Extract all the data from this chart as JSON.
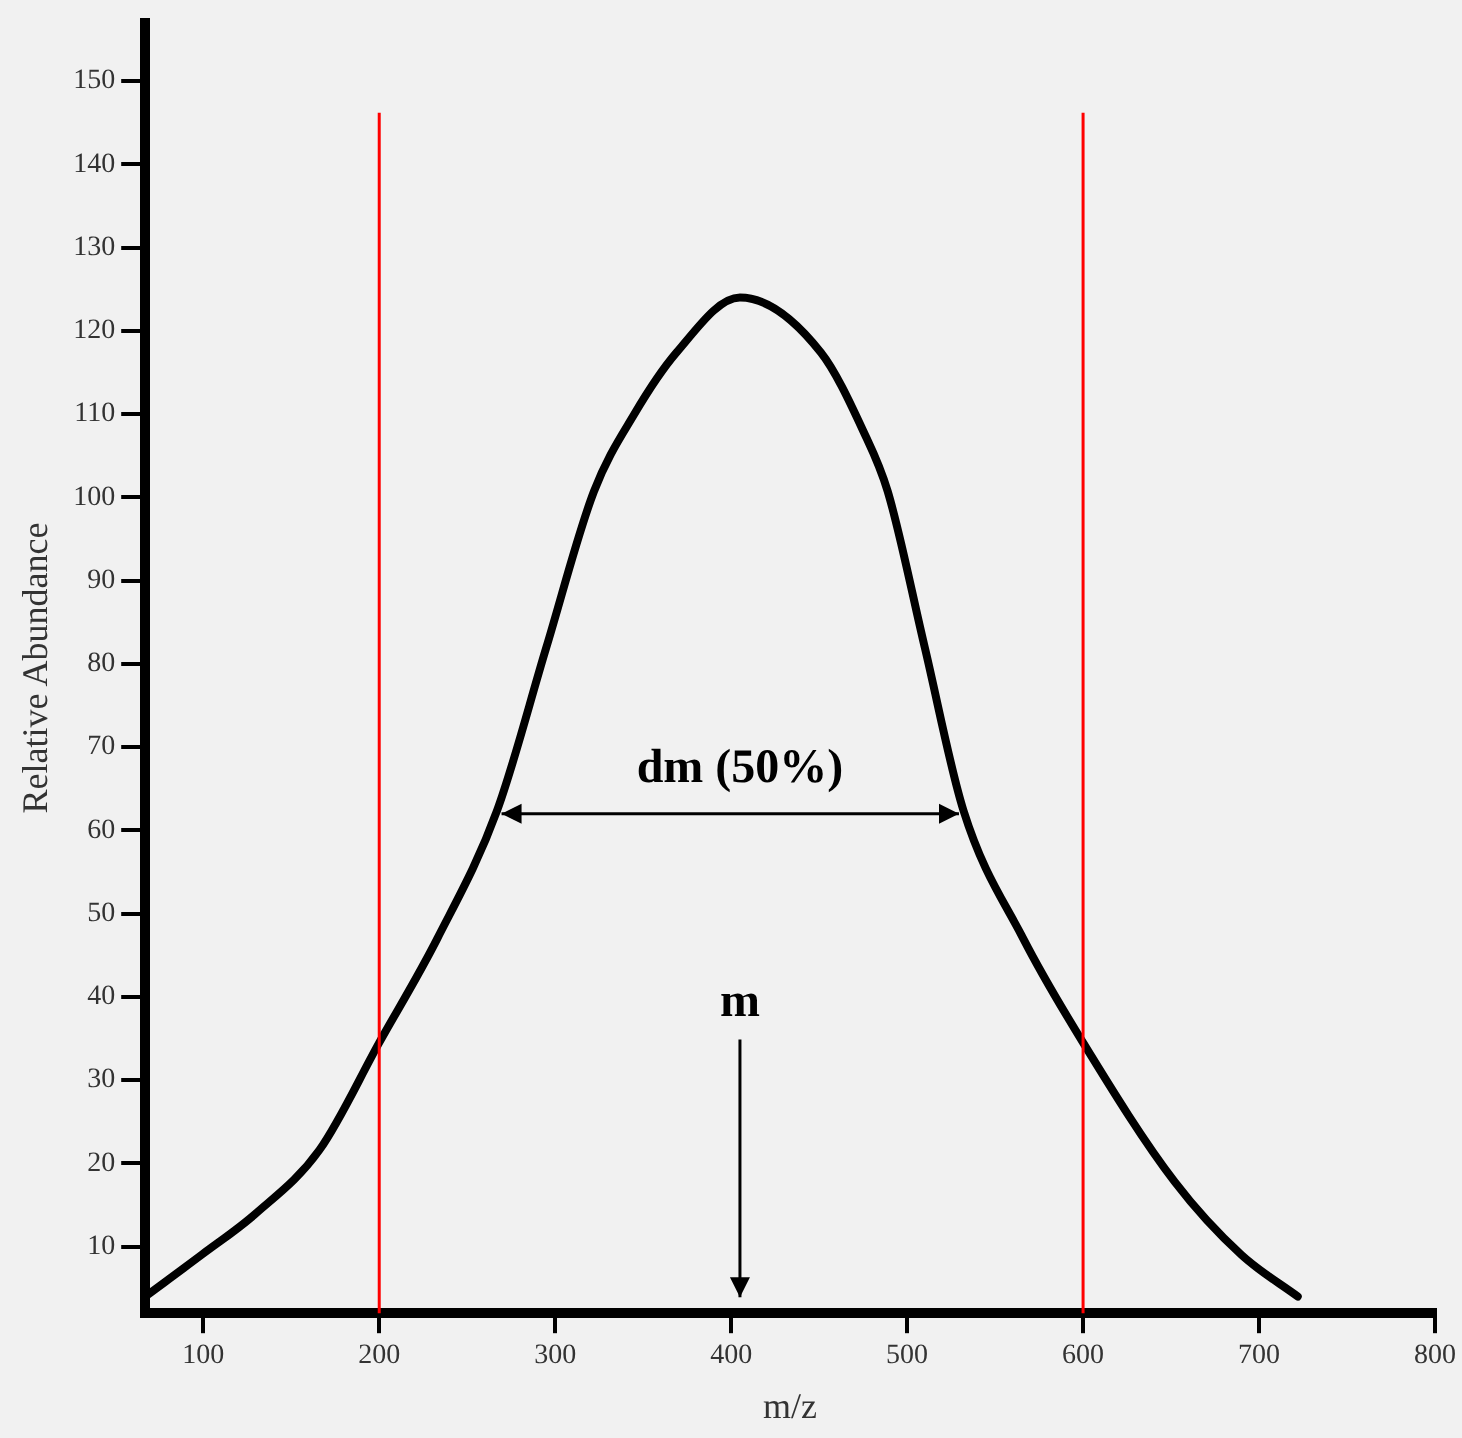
{
  "chart_data": {
    "type": "line",
    "xlabel": "m/z",
    "ylabel": "Relative Abundance",
    "x": [
      67,
      99,
      130,
      166,
      200,
      233,
      267,
      295,
      322,
      345,
      369,
      405,
      451,
      475,
      489,
      510,
      532,
      566,
      600,
      652,
      690,
      722
    ],
    "series": [
      {
        "color": "#000000",
        "values": [
          4,
          9,
          14,
          21.6,
          34.5,
          47,
          62.4,
          82,
          100.7,
          110,
          117.4,
          124,
          117.4,
          108,
          100.7,
          82,
          62.4,
          47,
          34.5,
          17.8,
          9,
          4
        ]
      }
    ],
    "xlim": [
      67,
      800
    ],
    "xticks": [
      100,
      200,
      300,
      400,
      500,
      600,
      700,
      800
    ],
    "ylim": [
      2,
      157
    ],
    "yticks": [
      10,
      20,
      30,
      40,
      50,
      60,
      70,
      80,
      90,
      100,
      110,
      120,
      130,
      140,
      150
    ],
    "ref_lines": [
      {
        "axis": "x",
        "value": 200,
        "color": "#ff0000"
      },
      {
        "axis": "x",
        "value": 600,
        "color": "#ff0000"
      }
    ],
    "annotations": [
      "dm (50%)",
      "m"
    ],
    "grid": false,
    "legend": false,
    "marker": "none",
    "line_style": "solid"
  }
}
